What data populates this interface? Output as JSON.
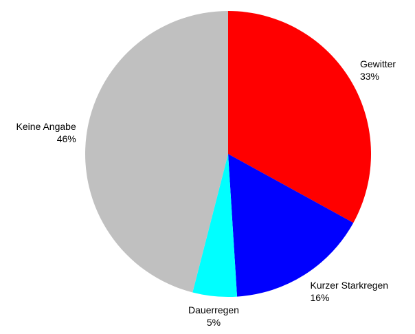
{
  "chart_data": {
    "type": "pie",
    "categories": [
      "Gewitter",
      "Kurzer Starkregen",
      "Dauerregen",
      "Keine Angabe"
    ],
    "values": [
      33,
      16,
      5,
      46
    ],
    "value_labels": [
      "33%",
      "16%",
      "5%",
      "46%"
    ],
    "colors": [
      "#ff0000",
      "#0000ff",
      "#00ffff",
      "#c0c0c0"
    ]
  }
}
